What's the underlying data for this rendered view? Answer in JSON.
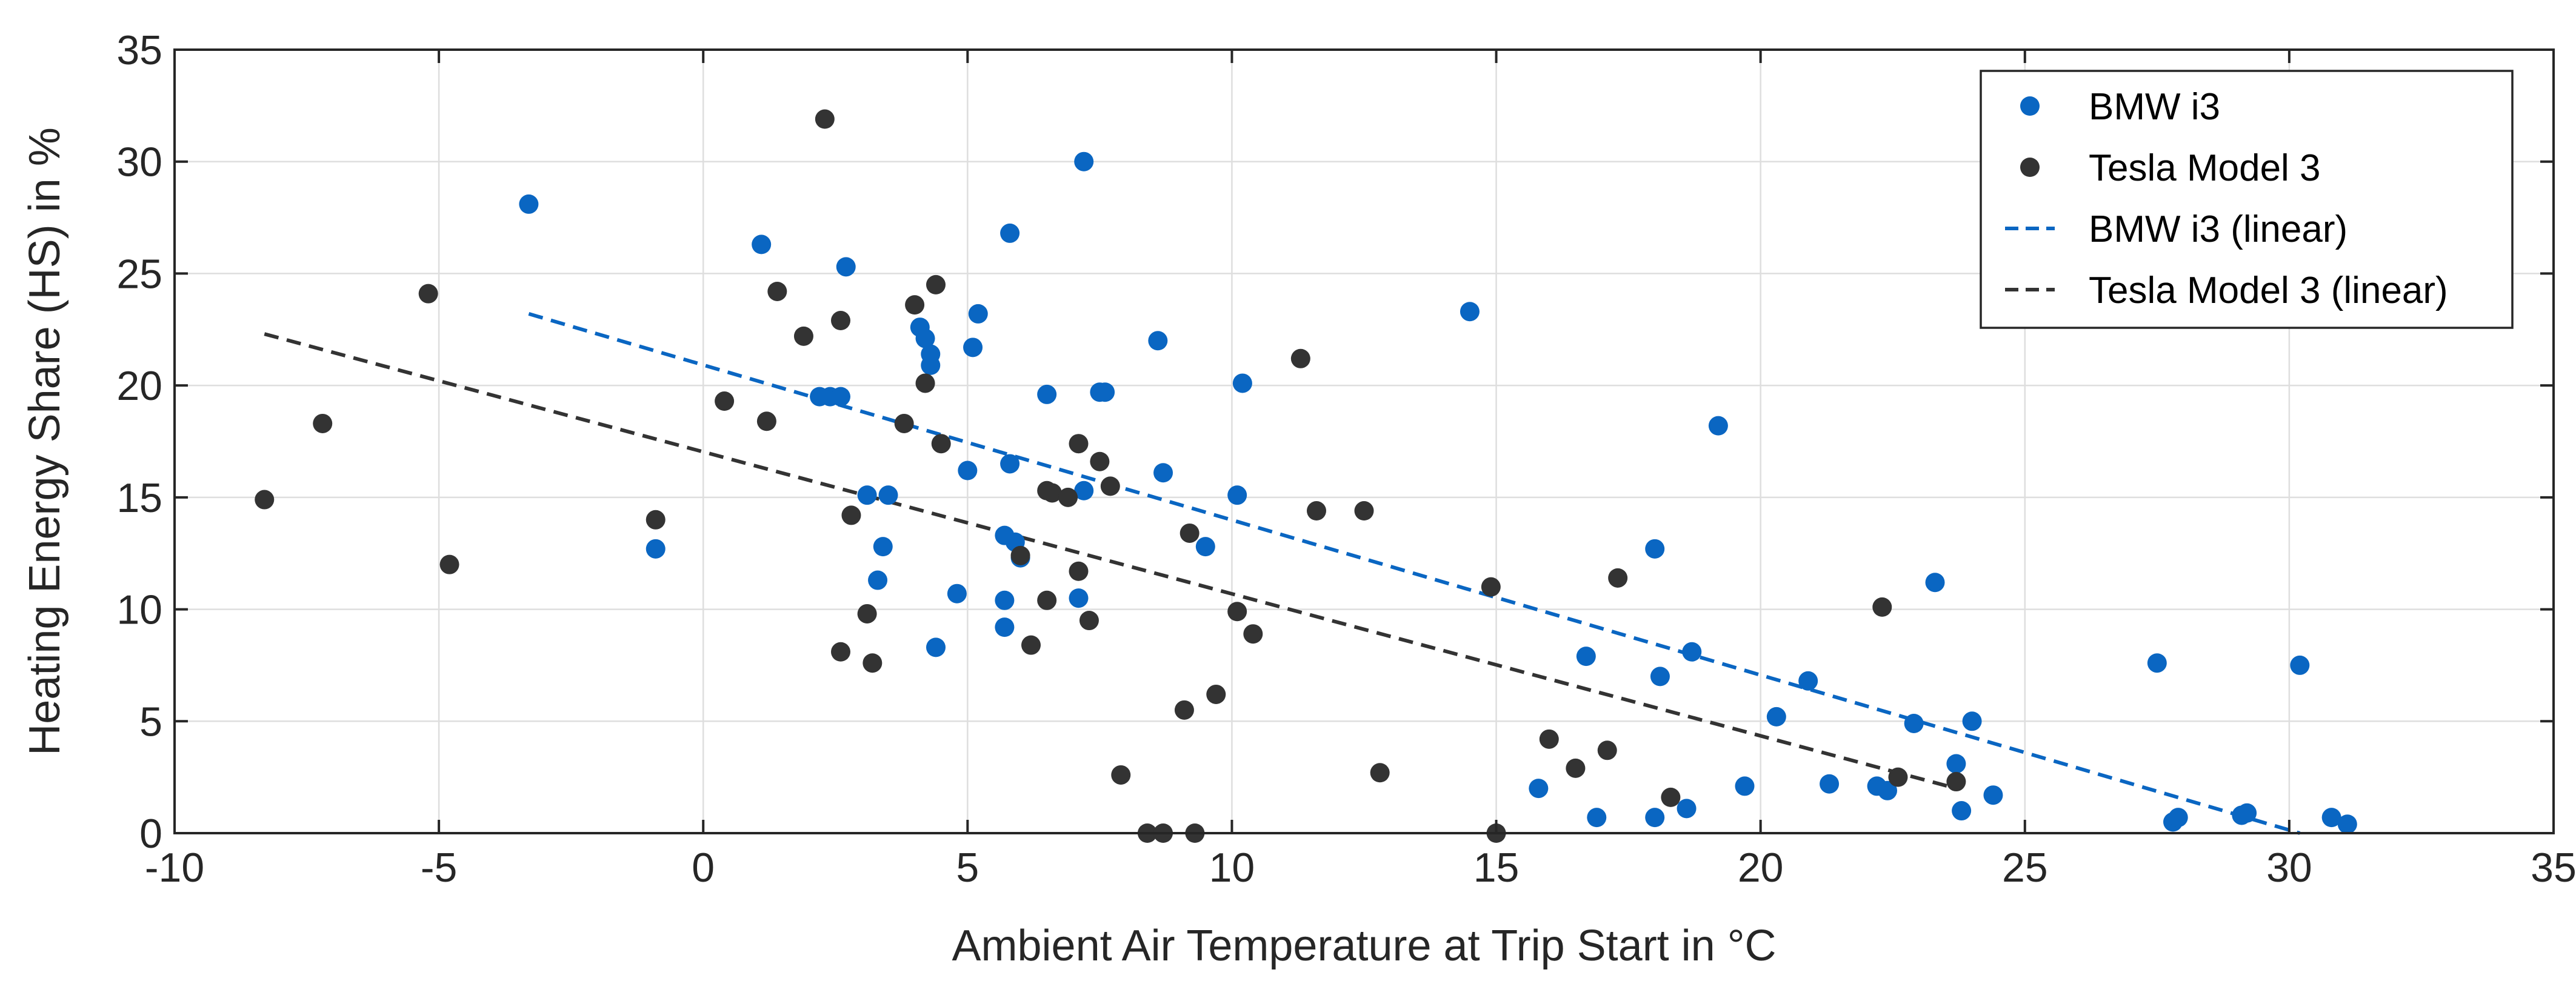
{
  "chart_data": {
    "type": "scatter",
    "title": "",
    "xlabel": "Ambient Air Temperature at Trip Start in °C",
    "ylabel": "Heating Energy Share (HS) in %",
    "xlim": [
      -10,
      35
    ],
    "ylim": [
      0,
      35
    ],
    "xticks": [
      -10,
      -5,
      0,
      5,
      10,
      15,
      20,
      25,
      30,
      35
    ],
    "yticks": [
      0,
      5,
      10,
      15,
      20,
      25,
      30,
      35
    ],
    "grid": true,
    "legend_position": "top-right",
    "series": [
      {
        "name": "BMW i3",
        "kind": "scatter",
        "color": "#0a66c2",
        "points": [
          [
            -3.3,
            28.1
          ],
          [
            -0.9,
            12.7
          ],
          [
            1.1,
            26.3
          ],
          [
            2.2,
            19.5
          ],
          [
            2.4,
            19.5
          ],
          [
            2.6,
            19.5
          ],
          [
            2.7,
            25.3
          ],
          [
            3.1,
            15.1
          ],
          [
            3.3,
            11.3
          ],
          [
            3.4,
            12.8
          ],
          [
            3.5,
            15.1
          ],
          [
            4.1,
            22.6
          ],
          [
            4.2,
            22.1
          ],
          [
            4.3,
            21.4
          ],
          [
            4.3,
            20.9
          ],
          [
            4.4,
            8.3
          ],
          [
            4.8,
            10.7
          ],
          [
            5.0,
            16.2
          ],
          [
            5.1,
            21.7
          ],
          [
            5.2,
            23.2
          ],
          [
            5.7,
            13.3
          ],
          [
            5.7,
            10.4
          ],
          [
            5.7,
            9.2
          ],
          [
            5.8,
            26.8
          ],
          [
            5.8,
            16.5
          ],
          [
            5.9,
            13.0
          ],
          [
            6.0,
            12.3
          ],
          [
            6.5,
            19.6
          ],
          [
            7.1,
            10.5
          ],
          [
            7.2,
            15.3
          ],
          [
            7.2,
            30.0
          ],
          [
            7.5,
            19.7
          ],
          [
            7.6,
            19.7
          ],
          [
            8.6,
            22.0
          ],
          [
            8.7,
            16.1
          ],
          [
            9.5,
            12.8
          ],
          [
            10.1,
            15.1
          ],
          [
            10.2,
            20.1
          ],
          [
            14.5,
            23.3
          ],
          [
            15.8,
            2.0
          ],
          [
            16.7,
            7.9
          ],
          [
            16.9,
            0.7
          ],
          [
            18.0,
            12.7
          ],
          [
            18.0,
            0.7
          ],
          [
            18.1,
            7.0
          ],
          [
            18.6,
            1.1
          ],
          [
            18.7,
            8.1
          ],
          [
            19.2,
            18.2
          ],
          [
            19.7,
            2.1
          ],
          [
            20.3,
            5.2
          ],
          [
            20.9,
            6.8
          ],
          [
            21.3,
            2.2
          ],
          [
            22.2,
            2.1
          ],
          [
            22.4,
            1.9
          ],
          [
            22.9,
            4.9
          ],
          [
            23.3,
            11.2
          ],
          [
            23.7,
            3.1
          ],
          [
            23.8,
            1.0
          ],
          [
            24.0,
            5.0
          ],
          [
            24.4,
            1.7
          ],
          [
            27.5,
            7.6
          ],
          [
            27.8,
            0.5
          ],
          [
            27.9,
            0.7
          ],
          [
            29.1,
            0.8
          ],
          [
            29.2,
            0.9
          ],
          [
            30.2,
            7.5
          ],
          [
            30.8,
            0.7
          ],
          [
            31.1,
            0.4
          ]
        ]
      },
      {
        "name": "Tesla Model 3",
        "kind": "scatter",
        "color": "#333333",
        "points": [
          [
            -8.3,
            14.9
          ],
          [
            -7.2,
            18.3
          ],
          [
            -5.2,
            24.1
          ],
          [
            -4.8,
            12.0
          ],
          [
            -0.9,
            14.0
          ],
          [
            0.4,
            19.3
          ],
          [
            1.2,
            18.4
          ],
          [
            1.4,
            24.2
          ],
          [
            1.9,
            22.2
          ],
          [
            2.3,
            31.9
          ],
          [
            2.6,
            22.9
          ],
          [
            2.6,
            8.1
          ],
          [
            2.8,
            14.2
          ],
          [
            3.1,
            9.8
          ],
          [
            3.2,
            7.6
          ],
          [
            3.8,
            18.3
          ],
          [
            4.0,
            23.6
          ],
          [
            4.2,
            20.1
          ],
          [
            4.4,
            24.5
          ],
          [
            4.5,
            17.4
          ],
          [
            6.0,
            12.4
          ],
          [
            6.2,
            8.4
          ],
          [
            6.5,
            10.4
          ],
          [
            6.5,
            15.3
          ],
          [
            6.6,
            15.2
          ],
          [
            6.9,
            15.0
          ],
          [
            7.1,
            17.4
          ],
          [
            7.1,
            11.7
          ],
          [
            7.3,
            9.5
          ],
          [
            7.5,
            16.6
          ],
          [
            7.7,
            15.5
          ],
          [
            7.9,
            2.6
          ],
          [
            8.4,
            0.0
          ],
          [
            8.7,
            0.0
          ],
          [
            9.1,
            5.5
          ],
          [
            9.2,
            13.4
          ],
          [
            9.3,
            0.0
          ],
          [
            9.7,
            6.2
          ],
          [
            10.1,
            9.9
          ],
          [
            10.4,
            8.9
          ],
          [
            11.3,
            21.2
          ],
          [
            11.6,
            14.4
          ],
          [
            12.5,
            14.4
          ],
          [
            12.8,
            2.7
          ],
          [
            14.9,
            11.0
          ],
          [
            15.0,
            0.0
          ],
          [
            16.0,
            4.2
          ],
          [
            16.5,
            2.9
          ],
          [
            17.1,
            3.7
          ],
          [
            17.3,
            11.4
          ],
          [
            18.3,
            1.6
          ],
          [
            22.3,
            10.1
          ],
          [
            22.6,
            2.5
          ],
          [
            23.7,
            2.3
          ]
        ]
      },
      {
        "name": "BMW i3 (linear)",
        "kind": "line",
        "dash": true,
        "color": "#0a66c2",
        "points": [
          [
            -3.3,
            23.2
          ],
          [
            30.2,
            0.0
          ]
        ]
      },
      {
        "name": "Tesla Model 3 (linear)",
        "kind": "line",
        "dash": true,
        "color": "#333333",
        "points": [
          [
            -8.3,
            22.3
          ],
          [
            23.7,
            2.0
          ]
        ]
      }
    ]
  }
}
